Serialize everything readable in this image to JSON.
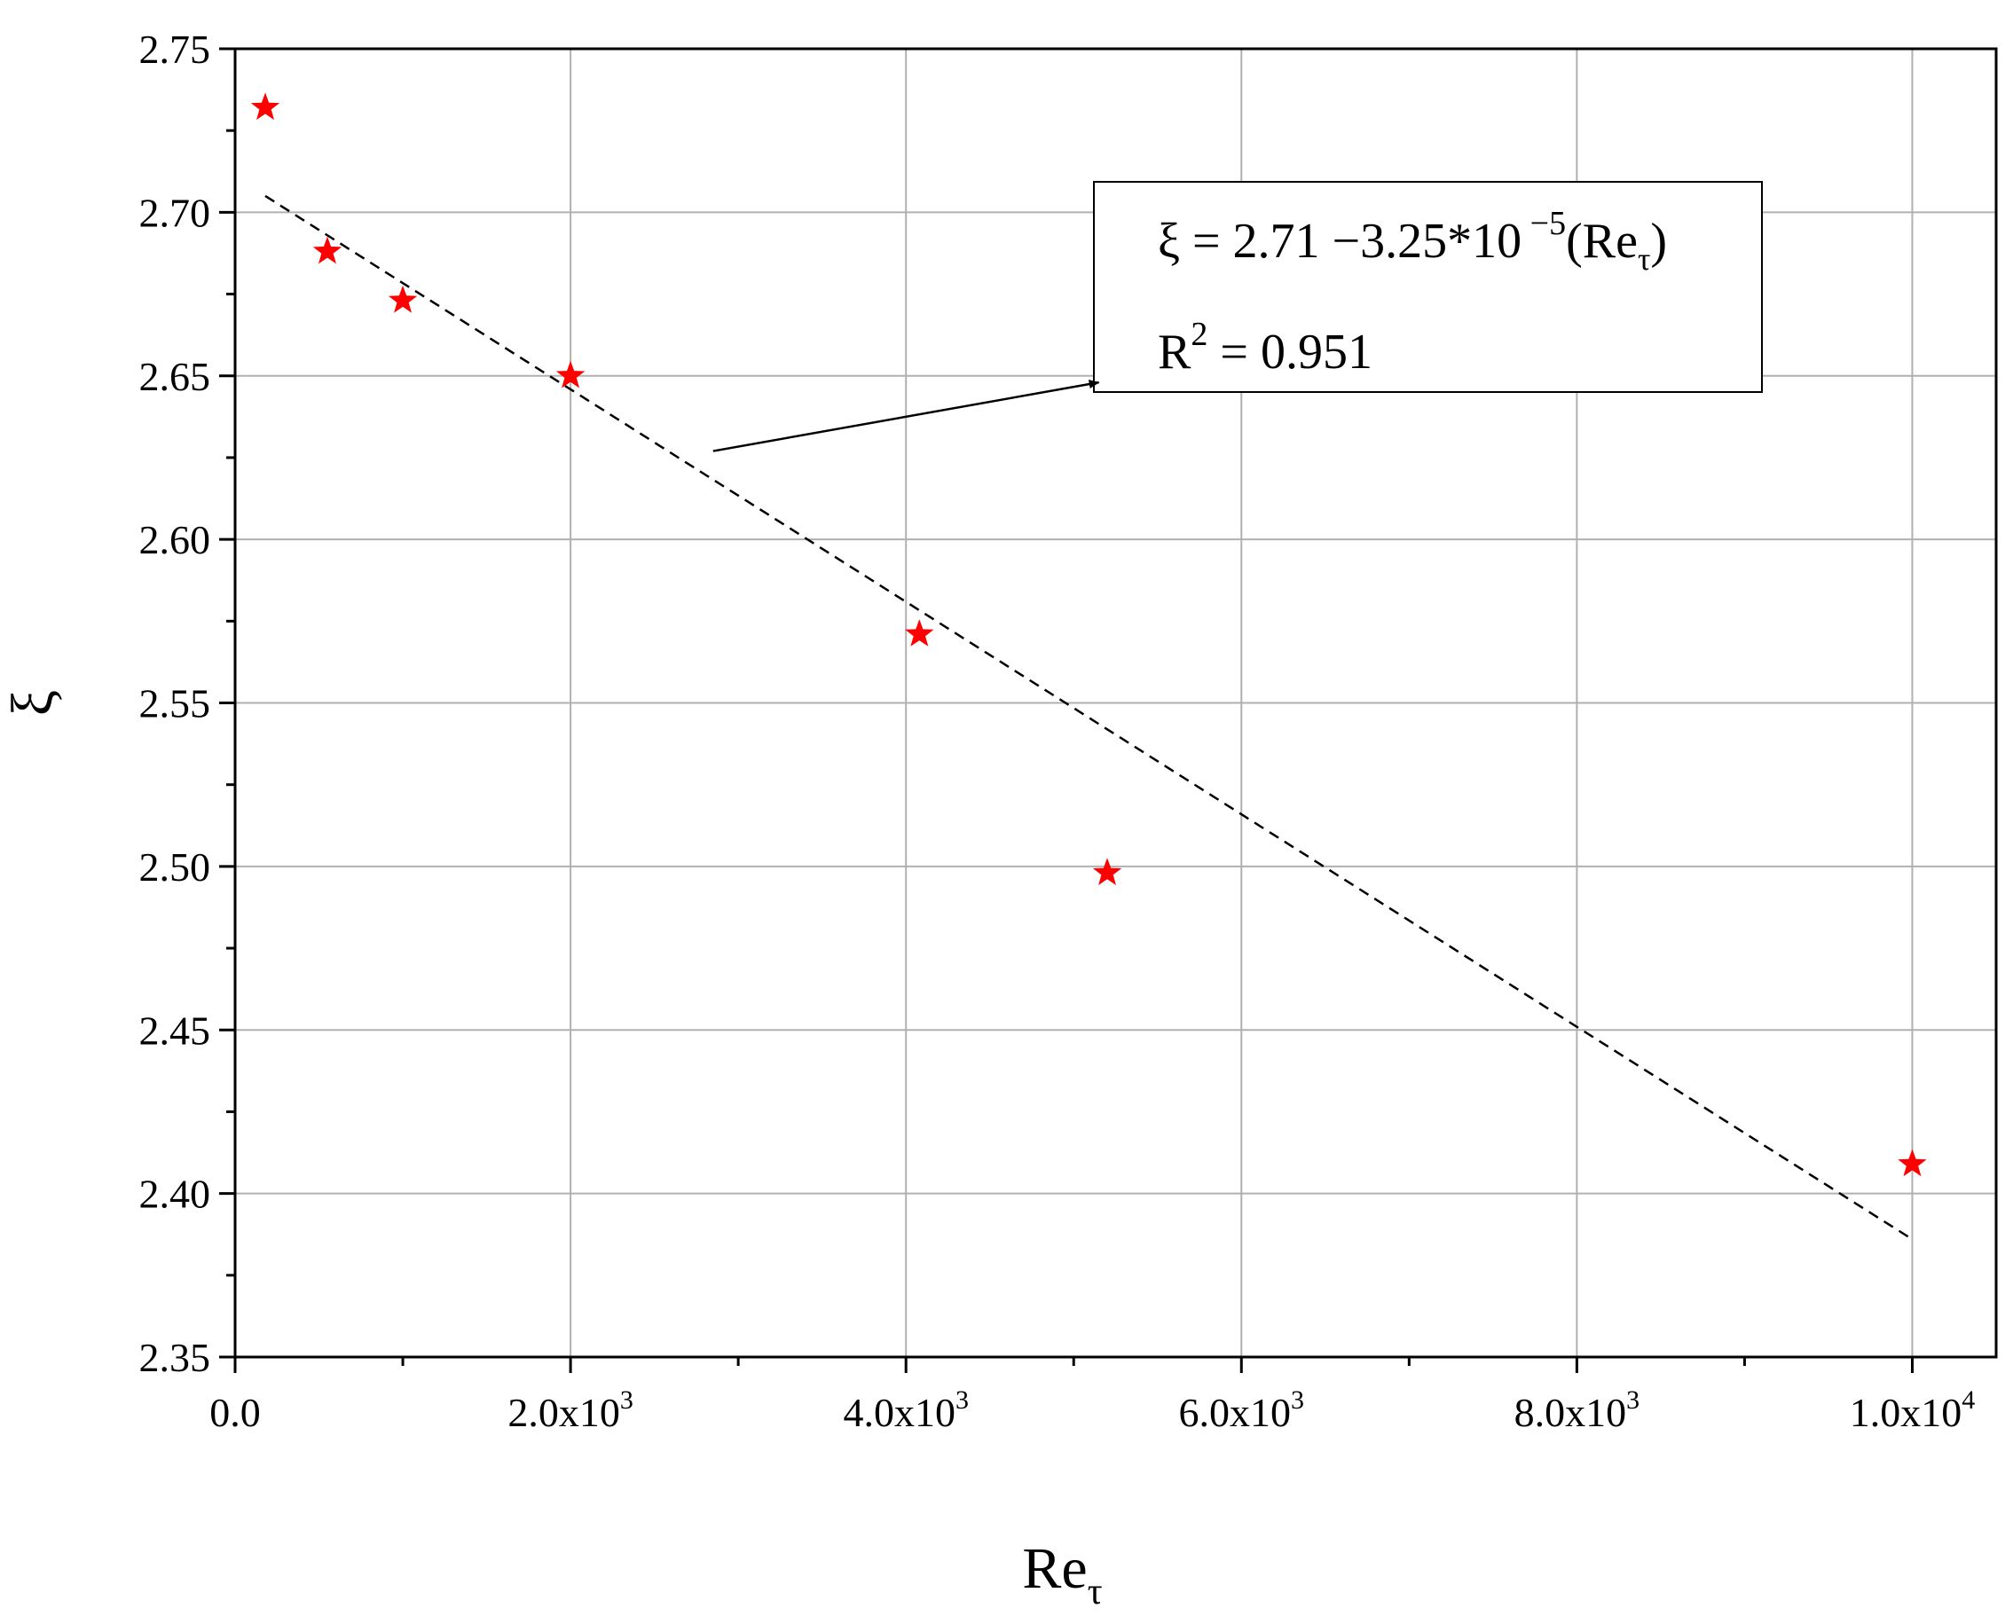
{
  "chart_data": {
    "type": "scatter",
    "title": "",
    "xlabel": "Re",
    "xlabel_sub": "τ",
    "ylabel": "ξ",
    "xlim": [
      0,
      10500
    ],
    "ylim": [
      2.35,
      2.75
    ],
    "grid": true,
    "x_ticks": [
      {
        "value": 0,
        "mant": "0.0",
        "exp": ""
      },
      {
        "value": 2000,
        "mant": "2.0x10",
        "exp": "3"
      },
      {
        "value": 4000,
        "mant": "4.0x10",
        "exp": "3"
      },
      {
        "value": 6000,
        "mant": "6.0x10",
        "exp": "3"
      },
      {
        "value": 8000,
        "mant": "8.0x10",
        "exp": "3"
      },
      {
        "value": 10000,
        "mant": "1.0x10",
        "exp": "4"
      }
    ],
    "y_ticks": [
      "2.35",
      "2.40",
      "2.45",
      "2.50",
      "2.55",
      "2.60",
      "2.65",
      "2.70",
      "2.75"
    ],
    "series": [
      {
        "marker": "star",
        "color": "#ff0000",
        "x": [
          180,
          550,
          1000,
          2000,
          4080,
          5200,
          10000
        ],
        "y": [
          2.732,
          2.688,
          2.673,
          2.65,
          2.571,
          2.498,
          2.409
        ]
      }
    ],
    "fit_line": {
      "style": "dashed",
      "color": "#000000",
      "x": [
        180,
        10000
      ],
      "y": [
        2.705,
        2.386
      ]
    },
    "annotation": {
      "line1": {
        "pre": "ξ = 2.71 −3.25*10",
        "sup": " −5",
        "mid": "(Re",
        "sub": "τ",
        "post": ")"
      },
      "line2": {
        "pre": "R",
        "sup": "2",
        "post": " = 0.951"
      },
      "arrow_from": [
        2850,
        2.627
      ],
      "arrow_to": [
        5150,
        2.648
      ]
    }
  }
}
